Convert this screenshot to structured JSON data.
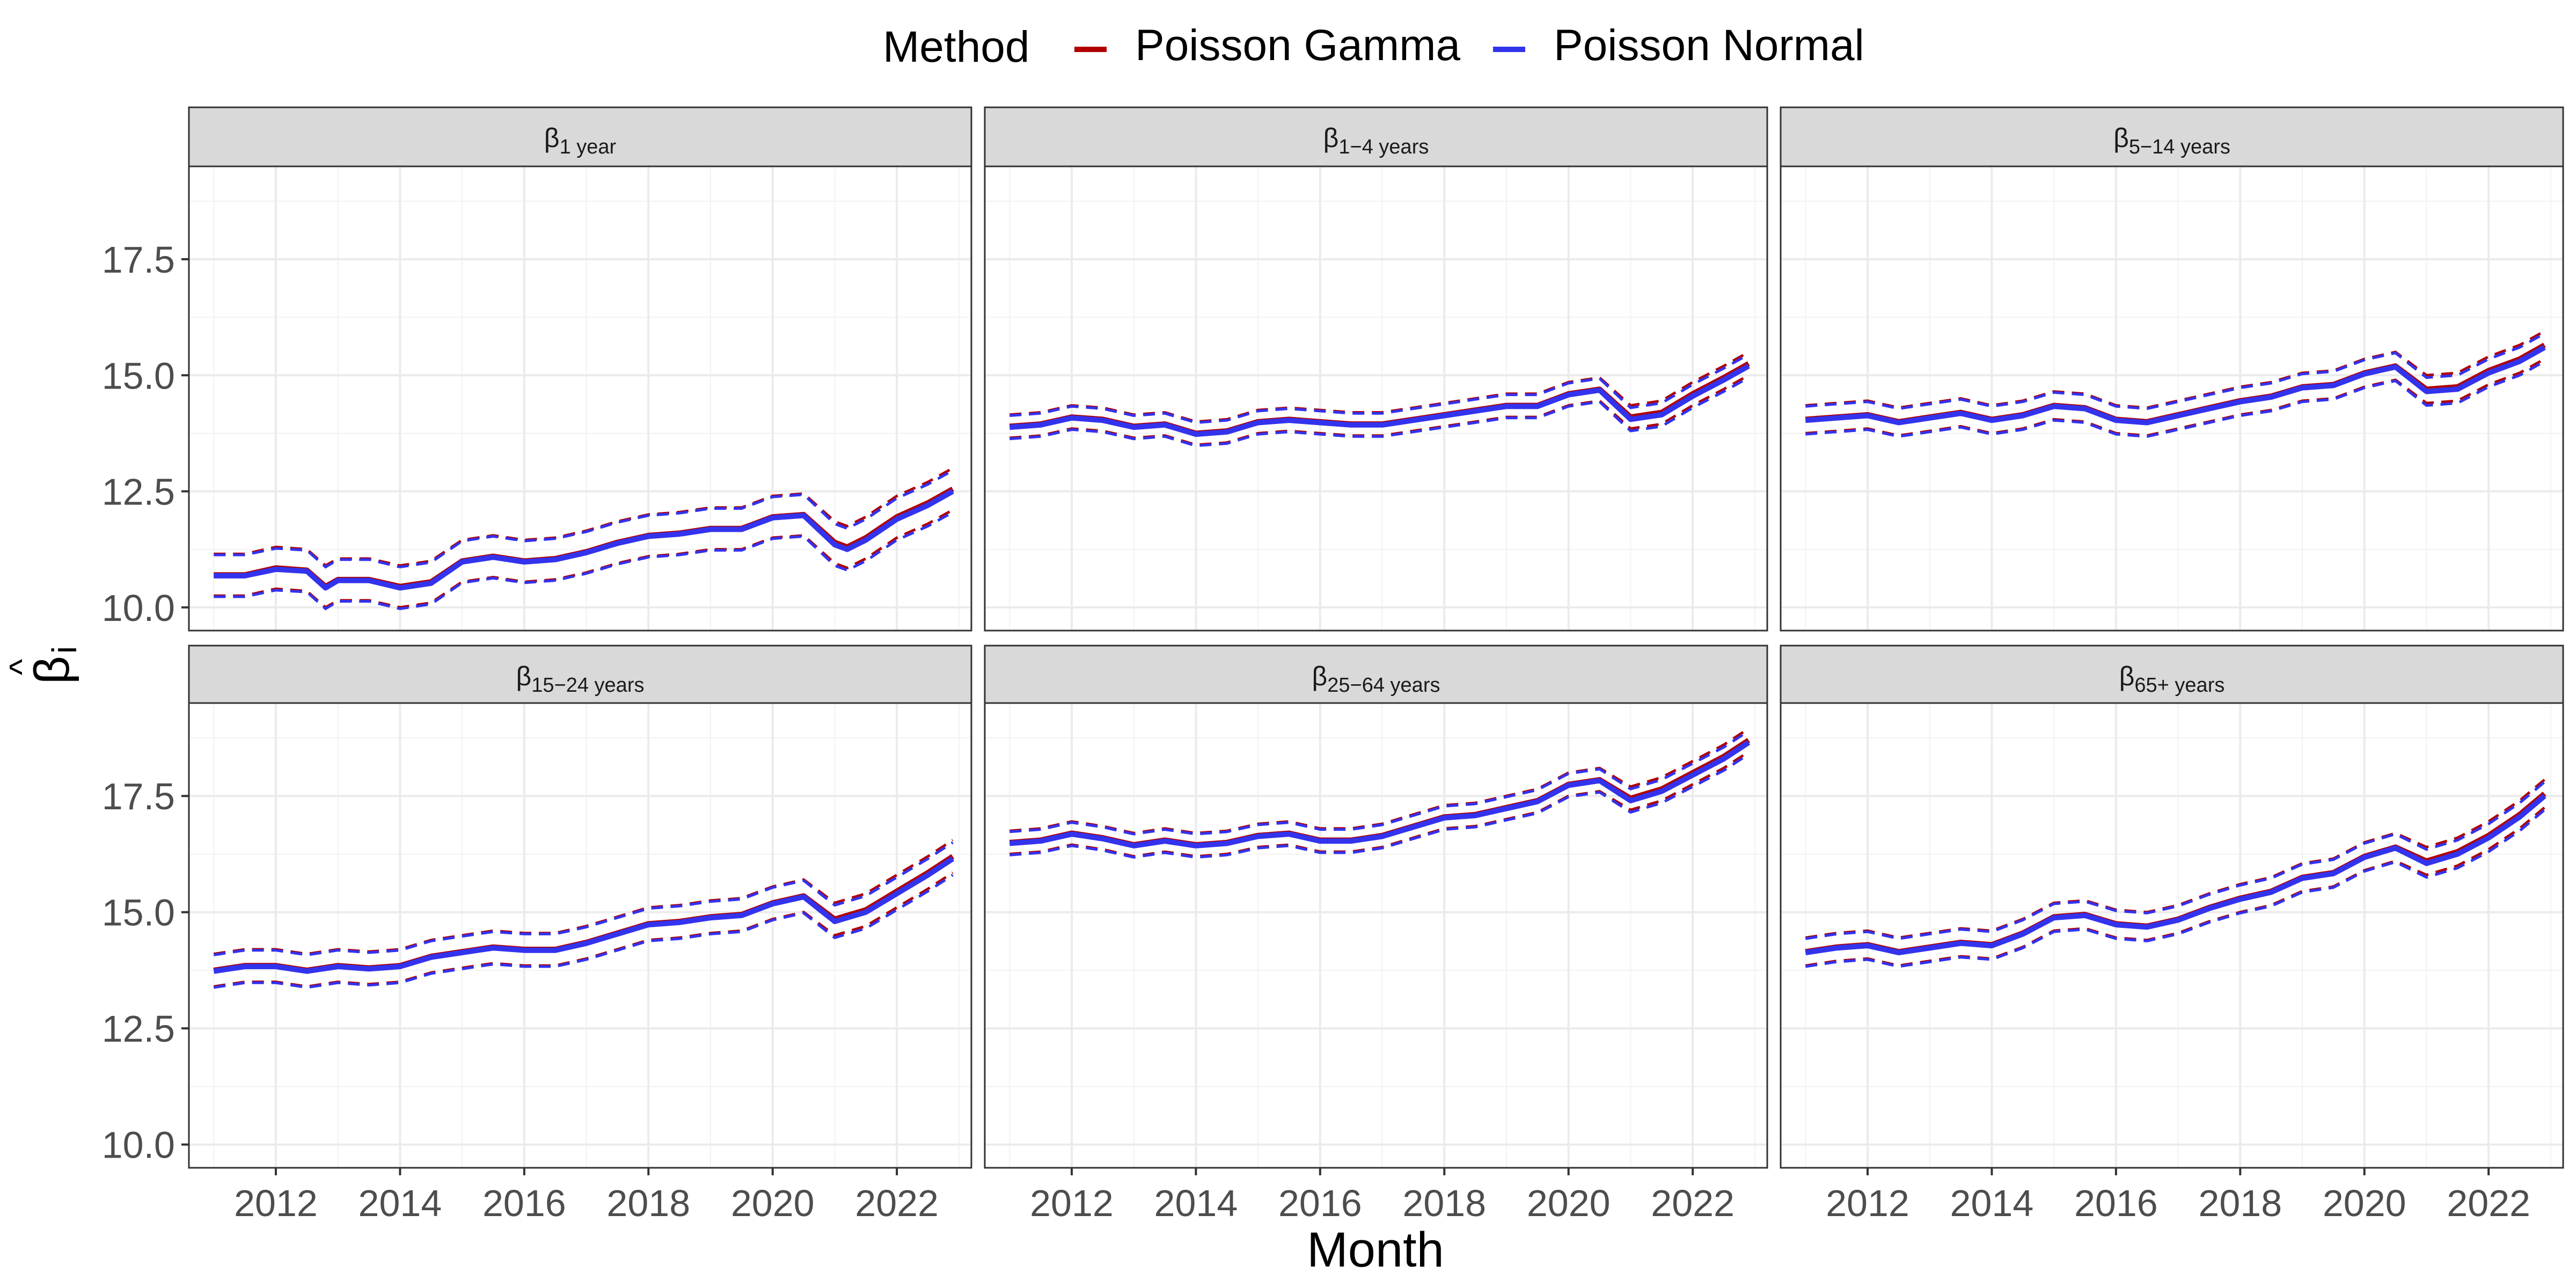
{
  "legend": {
    "title": "Method",
    "items": [
      {
        "label": "Poisson Gamma",
        "color": "#b00000"
      },
      {
        "label": "Poisson Normal",
        "color": "#3333ee"
      }
    ]
  },
  "axes": {
    "x_title": "Month",
    "y_title_symbol": "β",
    "y_title_hat": "^",
    "y_title_subscript": "i",
    "y_ticks": [
      "10.0",
      "12.5",
      "15.0",
      "17.5"
    ],
    "x_ticks": [
      "2012",
      "2014",
      "2016",
      "2018",
      "2020",
      "2022"
    ]
  },
  "colors": {
    "gamma": "#b00000",
    "normal": "#3333ee",
    "strip_bg": "#d9d9d9",
    "grid": "#ebebeb"
  },
  "chart_data": [
    {
      "type": "line",
      "panel_symbol": "β",
      "panel_subscript": "1 year",
      "ylim": [
        9.5,
        19.5
      ],
      "xlim": [
        2010.6,
        2023.2
      ],
      "ci_half_width": 0.45,
      "x": [
        2011.0,
        2011.5,
        2012.0,
        2012.5,
        2012.8,
        2013.0,
        2013.5,
        2014.0,
        2014.5,
        2015.0,
        2015.5,
        2016.0,
        2016.5,
        2017.0,
        2017.5,
        2018.0,
        2018.5,
        2019.0,
        2019.5,
        2020.0,
        2020.5,
        2021.0,
        2021.2,
        2021.5,
        2022.0,
        2022.5,
        2022.9
      ],
      "series": [
        {
          "name": "Poisson Gamma",
          "values": [
            10.7,
            10.7,
            10.85,
            10.8,
            10.45,
            10.6,
            10.6,
            10.45,
            10.55,
            11.0,
            11.1,
            11.0,
            11.05,
            11.2,
            11.4,
            11.55,
            11.6,
            11.7,
            11.7,
            11.95,
            12.0,
            11.4,
            11.3,
            11.5,
            11.95,
            12.25,
            12.55
          ]
        },
        {
          "name": "Poisson Normal",
          "values": [
            10.68,
            10.68,
            10.82,
            10.78,
            10.42,
            10.58,
            10.58,
            10.42,
            10.52,
            10.98,
            11.08,
            10.98,
            11.03,
            11.18,
            11.38,
            11.53,
            11.58,
            11.68,
            11.68,
            11.93,
            11.98,
            11.35,
            11.25,
            11.45,
            11.9,
            12.2,
            12.5
          ]
        }
      ]
    },
    {
      "type": "line",
      "panel_symbol": "β",
      "panel_subscript": "1−4 years",
      "ylim": [
        9.5,
        19.5
      ],
      "xlim": [
        2010.6,
        2023.2
      ],
      "ci_half_width": 0.25,
      "x": [
        2011.0,
        2011.5,
        2012.0,
        2012.5,
        2013.0,
        2013.5,
        2014.0,
        2014.5,
        2015.0,
        2015.5,
        2016.0,
        2016.5,
        2017.0,
        2017.5,
        2018.0,
        2018.5,
        2019.0,
        2019.5,
        2020.0,
        2020.5,
        2021.0,
        2021.5,
        2022.0,
        2022.5,
        2022.9
      ],
      "series": [
        {
          "name": "Poisson Gamma",
          "values": [
            13.9,
            13.95,
            14.1,
            14.05,
            13.9,
            13.95,
            13.75,
            13.8,
            14.0,
            14.05,
            14.0,
            13.95,
            13.95,
            14.05,
            14.15,
            14.25,
            14.35,
            14.35,
            14.6,
            14.7,
            14.1,
            14.2,
            14.6,
            14.95,
            15.25
          ]
        },
        {
          "name": "Poisson Normal",
          "values": [
            13.88,
            13.93,
            14.08,
            14.03,
            13.88,
            13.93,
            13.73,
            13.78,
            13.98,
            14.03,
            13.98,
            13.93,
            13.93,
            14.03,
            14.13,
            14.23,
            14.33,
            14.33,
            14.58,
            14.68,
            14.05,
            14.15,
            14.55,
            14.9,
            15.2
          ]
        }
      ]
    },
    {
      "type": "line",
      "panel_symbol": "β",
      "panel_subscript": "5−14 years",
      "ylim": [
        9.5,
        19.5
      ],
      "xlim": [
        2010.6,
        2023.2
      ],
      "ci_half_width": 0.3,
      "x": [
        2011.0,
        2011.5,
        2012.0,
        2012.5,
        2013.0,
        2013.5,
        2014.0,
        2014.5,
        2015.0,
        2015.5,
        2016.0,
        2016.5,
        2017.0,
        2017.5,
        2018.0,
        2018.5,
        2019.0,
        2019.5,
        2020.0,
        2020.5,
        2021.0,
        2021.5,
        2022.0,
        2022.5,
        2022.9
      ],
      "series": [
        {
          "name": "Poisson Gamma",
          "values": [
            14.05,
            14.1,
            14.15,
            14.0,
            14.1,
            14.2,
            14.05,
            14.15,
            14.35,
            14.3,
            14.05,
            14.0,
            14.15,
            14.3,
            14.45,
            14.55,
            14.75,
            14.8,
            15.05,
            15.2,
            14.7,
            14.75,
            15.1,
            15.35,
            15.65
          ]
        },
        {
          "name": "Poisson Normal",
          "values": [
            14.03,
            14.08,
            14.13,
            13.98,
            14.08,
            14.18,
            14.03,
            14.13,
            14.33,
            14.28,
            14.03,
            13.98,
            14.13,
            14.28,
            14.43,
            14.53,
            14.73,
            14.78,
            15.03,
            15.18,
            14.65,
            14.7,
            15.05,
            15.3,
            15.6
          ]
        }
      ]
    },
    {
      "type": "line",
      "panel_symbol": "β",
      "panel_subscript": "15−24 years",
      "ylim": [
        9.5,
        19.5
      ],
      "xlim": [
        2010.6,
        2023.2
      ],
      "ci_half_width": 0.35,
      "x": [
        2011.0,
        2011.5,
        2012.0,
        2012.5,
        2013.0,
        2013.5,
        2014.0,
        2014.5,
        2015.0,
        2015.5,
        2016.0,
        2016.5,
        2017.0,
        2017.5,
        2018.0,
        2018.5,
        2019.0,
        2019.5,
        2020.0,
        2020.5,
        2021.0,
        2021.5,
        2022.0,
        2022.5,
        2022.9
      ],
      "series": [
        {
          "name": "Poisson Gamma",
          "values": [
            13.75,
            13.85,
            13.85,
            13.75,
            13.85,
            13.8,
            13.85,
            14.05,
            14.15,
            14.25,
            14.2,
            14.2,
            14.35,
            14.55,
            14.75,
            14.8,
            14.9,
            14.95,
            15.2,
            15.35,
            14.85,
            15.05,
            15.45,
            15.85,
            16.2
          ]
        },
        {
          "name": "Poisson Normal",
          "values": [
            13.73,
            13.83,
            13.83,
            13.73,
            13.83,
            13.78,
            13.83,
            14.03,
            14.13,
            14.23,
            14.18,
            14.18,
            14.33,
            14.53,
            14.73,
            14.78,
            14.88,
            14.93,
            15.18,
            15.33,
            14.8,
            15.0,
            15.4,
            15.8,
            16.15
          ]
        }
      ]
    },
    {
      "type": "line",
      "panel_symbol": "β",
      "panel_subscript": "25−64 years",
      "ylim": [
        9.5,
        19.5
      ],
      "xlim": [
        2010.6,
        2023.2
      ],
      "ci_half_width": 0.25,
      "x": [
        2011.0,
        2011.5,
        2012.0,
        2012.5,
        2013.0,
        2013.5,
        2014.0,
        2014.5,
        2015.0,
        2015.5,
        2016.0,
        2016.5,
        2017.0,
        2017.5,
        2018.0,
        2018.5,
        2019.0,
        2019.5,
        2020.0,
        2020.5,
        2021.0,
        2021.5,
        2022.0,
        2022.5,
        2022.9
      ],
      "series": [
        {
          "name": "Poisson Gamma",
          "values": [
            16.5,
            16.55,
            16.7,
            16.6,
            16.45,
            16.55,
            16.45,
            16.5,
            16.65,
            16.7,
            16.55,
            16.55,
            16.65,
            16.85,
            17.05,
            17.1,
            17.25,
            17.4,
            17.75,
            17.85,
            17.45,
            17.65,
            18.0,
            18.35,
            18.7
          ]
        },
        {
          "name": "Poisson Normal",
          "values": [
            16.48,
            16.53,
            16.68,
            16.58,
            16.43,
            16.53,
            16.43,
            16.48,
            16.63,
            16.68,
            16.53,
            16.53,
            16.63,
            16.83,
            17.03,
            17.08,
            17.23,
            17.38,
            17.73,
            17.83,
            17.4,
            17.6,
            17.95,
            18.3,
            18.65
          ]
        }
      ]
    },
    {
      "type": "line",
      "panel_symbol": "β",
      "panel_subscript": "65+ years",
      "ylim": [
        9.5,
        19.5
      ],
      "xlim": [
        2010.6,
        2023.2
      ],
      "ci_half_width": 0.3,
      "x": [
        2011.0,
        2011.5,
        2012.0,
        2012.5,
        2013.0,
        2013.5,
        2014.0,
        2014.5,
        2015.0,
        2015.5,
        2016.0,
        2016.5,
        2017.0,
        2017.5,
        2018.0,
        2018.5,
        2019.0,
        2019.5,
        2020.0,
        2020.5,
        2021.0,
        2021.5,
        2022.0,
        2022.5,
        2022.9
      ],
      "series": [
        {
          "name": "Poisson Gamma",
          "values": [
            14.15,
            14.25,
            14.3,
            14.15,
            14.25,
            14.35,
            14.3,
            14.55,
            14.9,
            14.95,
            14.75,
            14.7,
            14.85,
            15.1,
            15.3,
            15.45,
            15.75,
            15.85,
            16.2,
            16.4,
            16.1,
            16.3,
            16.65,
            17.1,
            17.55
          ]
        },
        {
          "name": "Poisson Normal",
          "values": [
            14.13,
            14.23,
            14.28,
            14.13,
            14.23,
            14.33,
            14.28,
            14.53,
            14.88,
            14.93,
            14.73,
            14.68,
            14.83,
            15.08,
            15.28,
            15.43,
            15.73,
            15.83,
            16.18,
            16.38,
            16.05,
            16.25,
            16.6,
            17.05,
            17.5
          ]
        }
      ]
    }
  ]
}
